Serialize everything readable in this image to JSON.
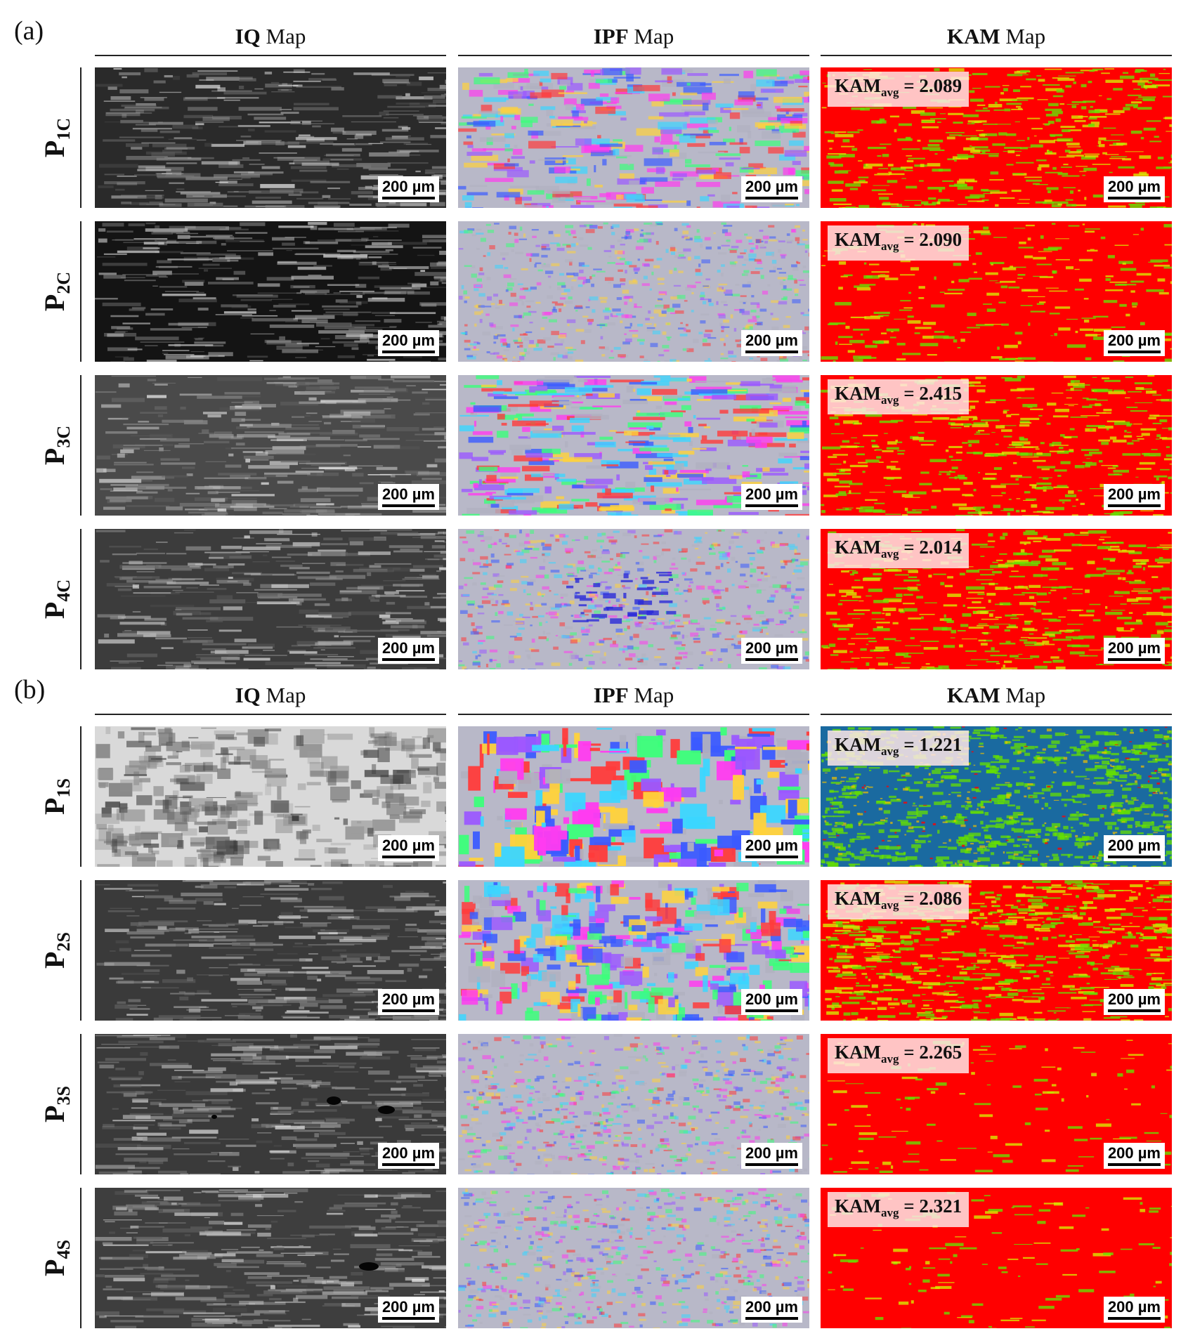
{
  "panels": [
    {
      "id": "a",
      "label": "(a)",
      "headers": [
        {
          "bold": "IQ",
          "rest": "Map"
        },
        {
          "bold": "IPF",
          "rest": "Map"
        },
        {
          "bold": "KAM",
          "rest": "Map"
        }
      ],
      "rows": [
        {
          "label_main": "P",
          "label_sub": "1C",
          "kam_prefix": "KAM",
          "kam_sub": "avg",
          "kam_value": "= 2.089",
          "iq_style": "dark-banded",
          "ipf_style": "mixed-grains",
          "kam_green_level": "medium"
        },
        {
          "label_main": "P",
          "label_sub": "2C",
          "kam_prefix": "KAM",
          "kam_sub": "avg",
          "kam_value": "= 2.090",
          "iq_style": "very-dark-banded",
          "ipf_style": "fine-noise",
          "kam_green_level": "low"
        },
        {
          "label_main": "P",
          "label_sub": "3C",
          "kam_prefix": "KAM",
          "kam_sub": "avg",
          "kam_value": "= 2.415",
          "iq_style": "gray-banded",
          "ipf_style": "coarse-elongated",
          "kam_green_level": "medium"
        },
        {
          "label_main": "P",
          "label_sub": "4C",
          "kam_prefix": "KAM",
          "kam_sub": "avg",
          "kam_value": "= 2.014",
          "iq_style": "uniform-gray",
          "ipf_style": "fine-noise-blue",
          "kam_green_level": "medium"
        }
      ]
    },
    {
      "id": "b",
      "label": "(b)",
      "headers": [
        {
          "bold": "IQ",
          "rest": "Map"
        },
        {
          "bold": "IPF",
          "rest": "Map"
        },
        {
          "bold": "KAM",
          "rest": "Map"
        }
      ],
      "rows": [
        {
          "label_main": "P",
          "label_sub": "1S",
          "kam_prefix": "KAM",
          "kam_sub": "avg",
          "kam_value": "= 1.221",
          "iq_style": "light-grains",
          "ipf_style": "large-grains",
          "kam_green_level": "blue-green"
        },
        {
          "label_main": "P",
          "label_sub": "2S",
          "kam_prefix": "KAM",
          "kam_sub": "avg",
          "kam_value": "= 2.086",
          "iq_style": "textured-dark",
          "ipf_style": "medium-grains",
          "kam_green_level": "high"
        },
        {
          "label_main": "P",
          "label_sub": "3S",
          "kam_prefix": "KAM",
          "kam_sub": "avg",
          "kam_value": "= 2.265",
          "iq_style": "uniform-gray-pores",
          "ipf_style": "fine-noise",
          "kam_green_level": "very-low"
        },
        {
          "label_main": "P",
          "label_sub": "4S",
          "kam_prefix": "KAM",
          "kam_sub": "avg",
          "kam_value": "= 2.321",
          "iq_style": "uniform-gray-pore",
          "ipf_style": "fine-noise",
          "kam_green_level": "very-low"
        }
      ]
    }
  ],
  "scale_bar_label": "200 µm",
  "colors": {
    "kam_red": "#ff0000",
    "kam_green": "#66e000",
    "kam_blue": "#1a6aa0",
    "ipf_palette": [
      "#ff3b3b",
      "#3bff7a",
      "#3b5bff",
      "#ff3bf0",
      "#3bd6ff",
      "#ffd23b",
      "#9b59ff",
      "#b0b0c0"
    ]
  }
}
